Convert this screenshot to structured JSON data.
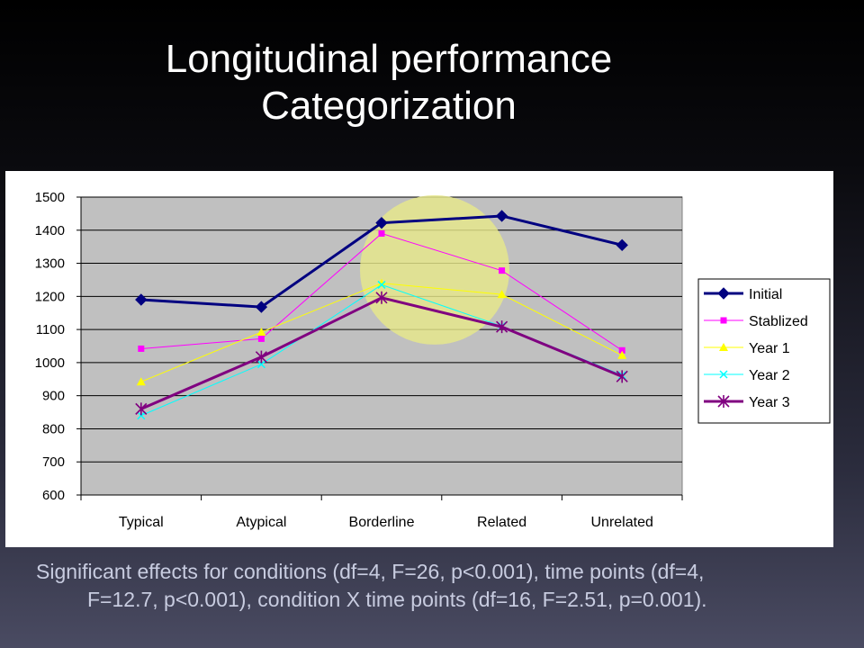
{
  "slide": {
    "title_line1": "Longitudinal performance",
    "title_line2": "Categorization",
    "caption_line1": "Significant effects for conditions (df=4, F=26, p<0.001), time points (df=4,",
    "caption_line2": "F=12.7, p<0.001), condition X time points (df=16, F=2.51, p=0.001)."
  },
  "chart_data": {
    "type": "line",
    "categories": [
      "Typical",
      "Atypical",
      "Borderline",
      "Related",
      "Unrelated"
    ],
    "ylim": [
      600,
      1500
    ],
    "yticks": [
      600,
      700,
      800,
      900,
      1000,
      1100,
      1200,
      1300,
      1400,
      1500
    ],
    "grid": true,
    "legend_position": "right",
    "plot_background": "#c0c0c0",
    "highlight": {
      "category": "Borderline",
      "color": "#e6e88a"
    },
    "series": [
      {
        "name": "Initial",
        "color": "#000080",
        "marker": "diamond",
        "width": 3,
        "values": [
          1190,
          1168,
          1422,
          1443,
          1355
        ]
      },
      {
        "name": "Stablized",
        "color": "#ff00ff",
        "marker": "square",
        "width": 1,
        "values": [
          1042,
          1072,
          1390,
          1278,
          1037
        ]
      },
      {
        "name": "Year 1",
        "color": "#ffff00",
        "marker": "triangle",
        "width": 1,
        "values": [
          942,
          1092,
          1240,
          1206,
          1022
        ]
      },
      {
        "name": "Year 2",
        "color": "#00ffff",
        "marker": "x",
        "width": 1,
        "values": [
          840,
          995,
          1235,
          1110,
          962
        ]
      },
      {
        "name": "Year 3",
        "color": "#800080",
        "marker": "star",
        "width": 3,
        "values": [
          860,
          1017,
          1196,
          1108,
          958
        ]
      }
    ]
  }
}
